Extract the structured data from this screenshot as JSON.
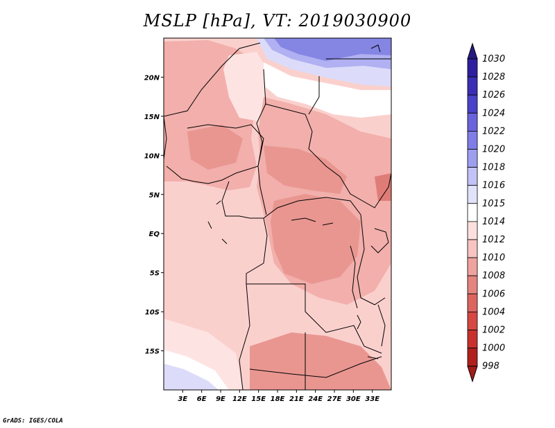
{
  "title": "MSLP [hPa], VT: 2019030900",
  "credit": "GrADS: IGES/COLA",
  "map": {
    "variable": "MSLP",
    "units": "hPa",
    "valid_time": "2019030900",
    "lon_range": [
      0,
      36
    ],
    "lat_range": [
      -20,
      25
    ],
    "lon_ticks": [
      {
        "value": 3,
        "label": "3E"
      },
      {
        "value": 6,
        "label": "6E"
      },
      {
        "value": 9,
        "label": "9E"
      },
      {
        "value": 12,
        "label": "12E"
      },
      {
        "value": 15,
        "label": "15E"
      },
      {
        "value": 18,
        "label": "18E"
      },
      {
        "value": 21,
        "label": "21E"
      },
      {
        "value": 24,
        "label": "24E"
      },
      {
        "value": 27,
        "label": "27E"
      },
      {
        "value": 30,
        "label": "30E"
      },
      {
        "value": 33,
        "label": "33E"
      }
    ],
    "lat_ticks": [
      {
        "value": 20,
        "label": "20N"
      },
      {
        "value": 15,
        "label": "15N"
      },
      {
        "value": 10,
        "label": "10N"
      },
      {
        "value": 5,
        "label": "5N"
      },
      {
        "value": 0,
        "label": "EQ"
      },
      {
        "value": -5,
        "label": "5S"
      },
      {
        "value": -10,
        "label": "10S"
      },
      {
        "value": -15,
        "label": "15S"
      }
    ]
  },
  "colorbar": {
    "levels": [
      {
        "label": "1030",
        "color": "#28188c"
      },
      {
        "label": "1028",
        "color": "#2d1f9e"
      },
      {
        "label": "1026",
        "color": "#3a2fb4"
      },
      {
        "label": "1024",
        "color": "#4a42c8"
      },
      {
        "label": "1022",
        "color": "#6a64dc"
      },
      {
        "label": "1020",
        "color": "#7f7ee6"
      },
      {
        "label": "1018",
        "color": "#9e9ef0"
      },
      {
        "label": "1016",
        "color": "#c2c2f7"
      },
      {
        "label": "1015",
        "color": "#e2e2fb"
      },
      {
        "label": "1014",
        "color": "#ffffff"
      },
      {
        "label": "1012",
        "color": "#fde0de"
      },
      {
        "label": "1010",
        "color": "#f7c4c1"
      },
      {
        "label": "1008",
        "color": "#eea39f"
      },
      {
        "label": "1006",
        "color": "#e48580"
      },
      {
        "label": "1004",
        "color": "#dd6560"
      },
      {
        "label": "1002",
        "color": "#d54844"
      },
      {
        "label": "1000",
        "color": "#c8322d"
      },
      {
        "label": "998",
        "color": "#b0201c"
      }
    ],
    "top_arrow_color": "#261a80",
    "bottom_arrow_color": "#a31c18"
  },
  "colors": {
    "ocean_pink": "#fad0cd",
    "land_pink": "#f2afab",
    "land_deep": "#e99691",
    "land_deepest": "#e07c77",
    "land_light": "#fde4e2",
    "white_band": "#ffffff",
    "blue_light": "#dcdcfa",
    "blue_mid": "#b0b0f2",
    "blue_deep": "#8585e4"
  }
}
